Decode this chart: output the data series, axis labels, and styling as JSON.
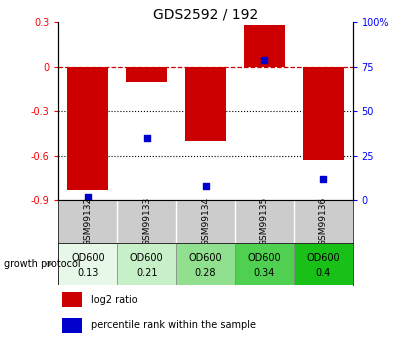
{
  "title": "GDS2592 / 192",
  "samples": [
    "GSM99132",
    "GSM99133",
    "GSM99134",
    "GSM99135",
    "GSM99136"
  ],
  "log2_ratio": [
    -0.83,
    -0.1,
    -0.5,
    0.28,
    -0.63
  ],
  "percentile_rank": [
    2,
    35,
    8,
    79,
    12
  ],
  "bar_color": "#cc0000",
  "dot_color": "#0000cc",
  "ylim_left": [
    -0.9,
    0.3
  ],
  "ylim_right": [
    0,
    100
  ],
  "yticks_left": [
    -0.9,
    -0.6,
    -0.3,
    0.0,
    0.3
  ],
  "yticks_right": [
    0,
    25,
    50,
    75,
    100
  ],
  "ytick_labels_left": [
    "-0.9",
    "-0.6",
    "-0.3",
    "0",
    "0.3"
  ],
  "ytick_labels_right": [
    "0",
    "25",
    "50",
    "75",
    "100%"
  ],
  "hlines": [
    -0.3,
    -0.6
  ],
  "dashed_line_y": 0.0,
  "protocol_labels_line1": [
    "OD600",
    "OD600",
    "OD600",
    "OD600",
    "OD600"
  ],
  "protocol_labels_line2": [
    "0.13",
    "0.21",
    "0.28",
    "0.34",
    "0.4"
  ],
  "protocol_colors": [
    "#e8f8e8",
    "#c8f0c8",
    "#90e090",
    "#50d050",
    "#18c018"
  ],
  "growth_protocol_text": "growth protocol",
  "legend_red": "log2 ratio",
  "legend_blue": "percentile rank within the sample",
  "bar_width": 0.7,
  "background_color": "#ffffff"
}
